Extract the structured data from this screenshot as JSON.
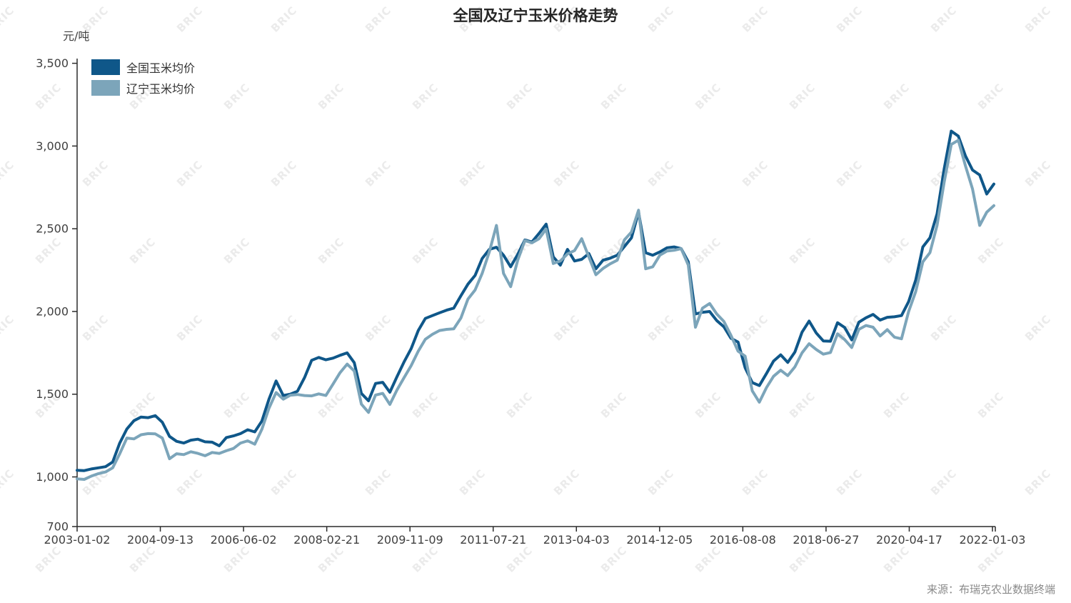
{
  "title": "全国及辽宁玉米价格走势",
  "unit_label": "元/吨",
  "source_note": "来源：布瑞克农业数据终端",
  "watermark": {
    "text": "BRIC"
  },
  "colors": {
    "national_line": "#0f5789",
    "liaoning_line": "#7ca5ba",
    "axis": "#2b2b2b",
    "tick_text": "#404040",
    "title_text": "#262626",
    "legend_text": "#333333",
    "source_text": "#8a8a8a",
    "watermark_text": "#ebebeb",
    "background": "#ffffff"
  },
  "legend": {
    "items": [
      {
        "label": "全国玉米均价",
        "color": "#0f5789"
      },
      {
        "label": "辽宁玉米均价",
        "color": "#7ca5ba"
      }
    ]
  },
  "chart_data": {
    "type": "line",
    "title": "全国及辽宁玉米价格走势",
    "xlabel": "",
    "ylabel": "元/吨",
    "ylim": [
      700,
      3500
    ],
    "grid": false,
    "legend_position": "top-left",
    "y_ticks": [
      {
        "value": 3500,
        "label": "3,500"
      },
      {
        "value": 3000,
        "label": "3,000"
      },
      {
        "value": 2500,
        "label": "2,500"
      },
      {
        "value": 2000,
        "label": "2,000"
      },
      {
        "value": 1500,
        "label": "1,500"
      },
      {
        "value": 1000,
        "label": "1,000"
      },
      {
        "value": 700,
        "label": "700"
      }
    ],
    "x_tick_labels": [
      "2003-01-02",
      "2004-09-13",
      "2006-06-02",
      "2008-02-21",
      "2009-11-09",
      "2011-07-21",
      "2013-04-03",
      "2014-12-05",
      "2016-08-08",
      "2018-06-27",
      "2020-04-17",
      "2022-01-03"
    ],
    "x_range": [
      "2003-01-02",
      "2022-01-03"
    ],
    "sampling_note": "130 samples per series, uniformly spaced in time across x_range; unit 元/吨",
    "series": [
      {
        "name": "全国玉米均价",
        "color": "#0f5789",
        "values": [
          1040,
          1038,
          1048,
          1055,
          1062,
          1090,
          1205,
          1290,
          1340,
          1362,
          1358,
          1370,
          1330,
          1245,
          1215,
          1205,
          1222,
          1228,
          1212,
          1210,
          1188,
          1238,
          1248,
          1262,
          1285,
          1272,
          1338,
          1470,
          1580,
          1492,
          1500,
          1518,
          1600,
          1705,
          1722,
          1708,
          1718,
          1735,
          1750,
          1690,
          1505,
          1460,
          1565,
          1572,
          1512,
          1605,
          1695,
          1775,
          1885,
          1958,
          1975,
          1992,
          2008,
          2020,
          2095,
          2165,
          2218,
          2320,
          2375,
          2388,
          2340,
          2270,
          2345,
          2432,
          2420,
          2472,
          2528,
          2330,
          2280,
          2375,
          2305,
          2315,
          2350,
          2258,
          2310,
          2322,
          2340,
          2392,
          2445,
          2600,
          2355,
          2340,
          2360,
          2385,
          2390,
          2380,
          2300,
          1985,
          1995,
          2000,
          1945,
          1908,
          1838,
          1815,
          1660,
          1570,
          1552,
          1625,
          1700,
          1738,
          1692,
          1755,
          1875,
          1942,
          1870,
          1822,
          1820,
          1932,
          1903,
          1828,
          1935,
          1962,
          1982,
          1948,
          1965,
          1968,
          1975,
          2060,
          2190,
          2390,
          2445,
          2590,
          2860,
          3090,
          3060,
          2940,
          2855,
          2825,
          2710,
          2770
        ]
      },
      {
        "name": "辽宁玉米均价",
        "color": "#7ca5ba",
        "values": [
          988,
          985,
          1005,
          1020,
          1030,
          1055,
          1140,
          1235,
          1230,
          1255,
          1262,
          1260,
          1235,
          1110,
          1140,
          1135,
          1152,
          1142,
          1128,
          1148,
          1142,
          1158,
          1172,
          1205,
          1218,
          1198,
          1288,
          1415,
          1510,
          1470,
          1494,
          1498,
          1492,
          1490,
          1502,
          1492,
          1560,
          1630,
          1682,
          1640,
          1440,
          1390,
          1495,
          1505,
          1438,
          1525,
          1600,
          1672,
          1760,
          1832,
          1862,
          1885,
          1892,
          1895,
          1960,
          2075,
          2130,
          2230,
          2360,
          2520,
          2230,
          2150,
          2310,
          2428,
          2415,
          2440,
          2498,
          2290,
          2305,
          2348,
          2368,
          2440,
          2330,
          2222,
          2260,
          2288,
          2310,
          2432,
          2480,
          2612,
          2258,
          2270,
          2340,
          2365,
          2370,
          2380,
          2280,
          1905,
          2020,
          2048,
          1985,
          1940,
          1856,
          1760,
          1730,
          1520,
          1452,
          1540,
          1608,
          1645,
          1612,
          1665,
          1750,
          1805,
          1770,
          1742,
          1752,
          1865,
          1830,
          1782,
          1892,
          1915,
          1905,
          1852,
          1890,
          1845,
          1835,
          2000,
          2120,
          2300,
          2355,
          2520,
          2780,
          3010,
          3035,
          2880,
          2740,
          2520,
          2600,
          2640
        ]
      }
    ]
  }
}
